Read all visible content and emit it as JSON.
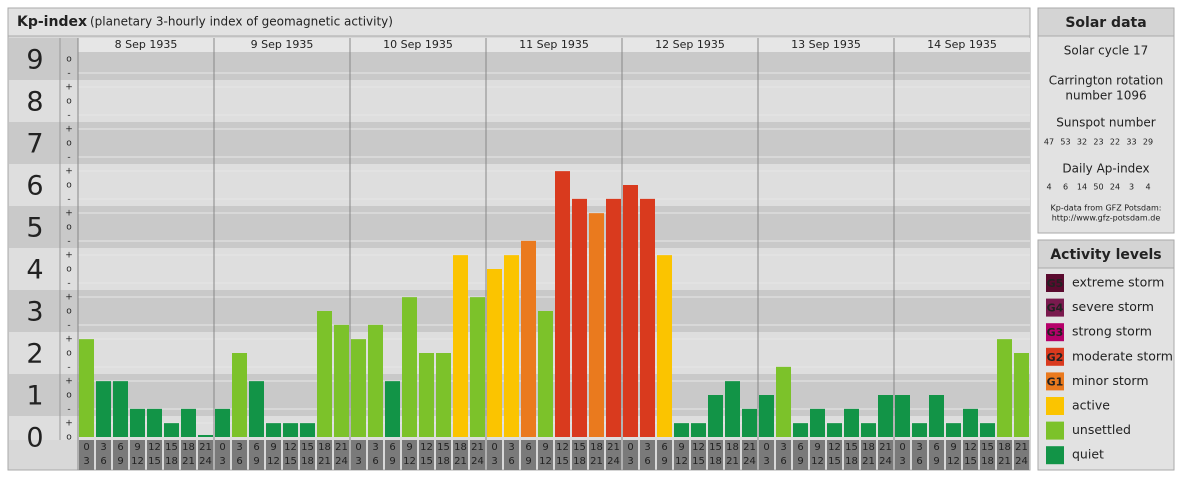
{
  "chart_data": {
    "type": "bar",
    "title": "Kp-index",
    "subtitle": "(planetary 3-hourly index of geomagnetic activity)",
    "days": [
      "8 Sep 1935",
      "9 Sep 1935",
      "10 Sep 1935",
      "11 Sep 1935",
      "12 Sep 1935",
      "13 Sep 1935",
      "14 Sep 1935"
    ],
    "hour_starts": [
      0,
      3,
      6,
      9,
      12,
      15,
      18,
      21
    ],
    "hour_ends": [
      3,
      6,
      9,
      12,
      15,
      18,
      21,
      24
    ],
    "values": [
      2.33,
      1.33,
      1.33,
      0.67,
      0.67,
      0.33,
      0.67,
      0,
      0.67,
      2,
      1.33,
      0.33,
      0.33,
      0.33,
      3,
      2.67,
      2.33,
      2.67,
      1.33,
      3.33,
      2,
      2,
      4.33,
      3.33,
      4,
      4.33,
      4.67,
      3,
      6.33,
      5.67,
      5.33,
      5.67,
      6,
      5.67,
      4.33,
      0.33,
      0.33,
      1,
      1.33,
      0.67,
      1,
      1.67,
      0.33,
      0.67,
      0.33,
      0.67,
      0.33,
      1,
      1,
      0.33,
      1,
      0.33,
      0.67,
      0.33,
      2.33,
      2
    ],
    "colors": [
      "#7cc22a",
      "#129447",
      "#129447",
      "#129447",
      "#129447",
      "#129447",
      "#129447",
      "#129447",
      "#129447",
      "#7cc22a",
      "#129447",
      "#129447",
      "#129447",
      "#129447",
      "#7cc22a",
      "#7cc22a",
      "#7cc22a",
      "#7cc22a",
      "#129447",
      "#7cc22a",
      "#7cc22a",
      "#7cc22a",
      "#fbc400",
      "#7cc22a",
      "#fbc400",
      "#fbc400",
      "#ea7a1e",
      "#7cc22a",
      "#d93a1e",
      "#d93a1e",
      "#ea7a1e",
      "#d93a1e",
      "#d93a1e",
      "#d93a1e",
      "#fbc400",
      "#129447",
      "#129447",
      "#129447",
      "#129447",
      "#129447",
      "#129447",
      "#7cc22a",
      "#129447",
      "#129447",
      "#129447",
      "#129447",
      "#129447",
      "#129447",
      "#129447",
      "#129447",
      "#129447",
      "#129447",
      "#129447",
      "#129447",
      "#7cc22a",
      "#7cc22a"
    ],
    "ylim": [
      0,
      9.5
    ],
    "yticks": [
      0,
      1,
      2,
      3,
      4,
      5,
      6,
      7,
      8,
      9
    ],
    "minor_tick_labels": [
      "-",
      "o",
      "+"
    ]
  },
  "solar_data": {
    "title": "Solar data",
    "solar_cycle": "Solar cycle 17",
    "carrington": [
      "Carrington rotation",
      "number 1096"
    ],
    "sunspot_title": "Sunspot number",
    "sunspot_numbers": [
      47,
      53,
      32,
      23,
      22,
      33,
      29
    ],
    "ap_title": "Daily Ap-index",
    "ap_index": [
      4,
      6,
      14,
      50,
      24,
      3,
      4
    ],
    "source": [
      "Kp-data from GFZ Potsdam:",
      "http://www.gfz-potsdam.de"
    ]
  },
  "activity_levels": {
    "title": "Activity levels",
    "items": [
      {
        "code": "G5",
        "name": "extreme storm",
        "color": "#5a0a2e"
      },
      {
        "code": "G4",
        "name": "severe storm",
        "color": "#7a1a4e"
      },
      {
        "code": "G3",
        "name": "strong storm",
        "color": "#b5006a"
      },
      {
        "code": "G2",
        "name": "moderate storm",
        "color": "#d93a1e"
      },
      {
        "code": "G1",
        "name": "minor storm",
        "color": "#ea7a1e"
      },
      {
        "name": "active",
        "color": "#fbc400"
      },
      {
        "name": "unsettled",
        "color": "#7cc22a"
      },
      {
        "name": "quiet",
        "color": "#129447"
      }
    ]
  }
}
